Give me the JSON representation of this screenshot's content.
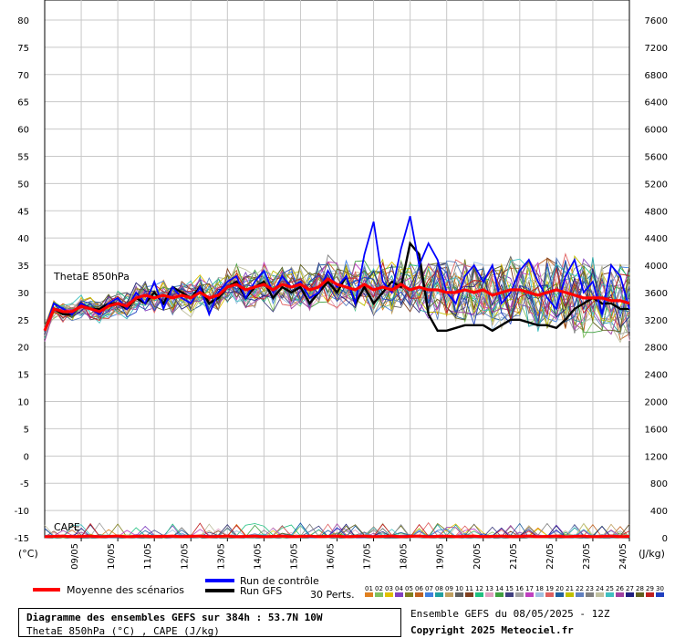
{
  "chart_data": {
    "type": "line",
    "title": "Diagramme des ensembles GEFS sur 384h : 53.7N 10W",
    "subtitle": "ThetaE 850hPa (°C) , CAPE (J/kg)",
    "left_axis": {
      "unit_label": "(°C)",
      "range": [
        -15,
        80
      ],
      "ticks": [
        80,
        75,
        70,
        65,
        60,
        55,
        50,
        45,
        40,
        35,
        30,
        25,
        20,
        15,
        10,
        5,
        0,
        -5,
        -10,
        -15
      ]
    },
    "right_axis": {
      "unit_label": "(J/kg)",
      "range": [
        0,
        7600
      ],
      "ticks": [
        7600,
        7200,
        6800,
        6400,
        6000,
        5600,
        5200,
        4800,
        4400,
        4000,
        3600,
        3200,
        2800,
        2400,
        2000,
        1600,
        1200,
        800,
        400,
        0
      ]
    },
    "x_ticks": [
      "09/05",
      "10/05",
      "11/05",
      "12/05",
      "13/05",
      "14/05",
      "15/05",
      "16/05",
      "17/05",
      "18/05",
      "19/05",
      "20/05",
      "21/05",
      "22/05",
      "23/05",
      "24/05"
    ],
    "x_range_hours": [
      0,
      384
    ],
    "annotations": [
      "ThetaE 850hPa",
      "CAPE"
    ],
    "series": [
      {
        "name": "Moyenne des scénarios",
        "color": "#ff0000",
        "x": [
          0,
          6,
          12,
          18,
          24,
          30,
          36,
          42,
          48,
          54,
          60,
          66,
          72,
          78,
          84,
          90,
          96,
          102,
          108,
          114,
          120,
          126,
          132,
          138,
          144,
          150,
          156,
          162,
          168,
          174,
          180,
          186,
          192,
          198,
          204,
          210,
          216,
          222,
          228,
          234,
          240,
          246,
          252,
          258,
          264,
          270,
          276,
          282,
          288,
          294,
          300,
          306,
          312,
          318,
          324,
          330,
          336,
          342,
          348,
          354,
          360,
          366,
          372,
          378,
          384
        ],
        "y": [
          23,
          27,
          26.5,
          26.5,
          27.5,
          27,
          26.5,
          27.5,
          28,
          27.5,
          29,
          29.5,
          29,
          29.5,
          29,
          29.5,
          29,
          30,
          29,
          29.5,
          31,
          31.5,
          30.5,
          31,
          31.5,
          30.5,
          31.5,
          31,
          31.5,
          30.5,
          31,
          32.5,
          31.5,
          31,
          30.5,
          31.5,
          30.5,
          31,
          30.5,
          31.5,
          30.5,
          31,
          30.5,
          30.5,
          30,
          30,
          30.5,
          30,
          30.5,
          29.5,
          30,
          30.5,
          30.5,
          30,
          29.5,
          30,
          30.5,
          30,
          29.5,
          29,
          29,
          29,
          28.5,
          28.5,
          28
        ]
      },
      {
        "name": "Run de contrôle",
        "color": "#0000ff",
        "x": [
          0,
          6,
          12,
          18,
          24,
          30,
          36,
          42,
          48,
          54,
          60,
          66,
          72,
          78,
          84,
          90,
          96,
          102,
          108,
          114,
          120,
          126,
          132,
          138,
          144,
          150,
          156,
          162,
          168,
          174,
          180,
          186,
          192,
          198,
          204,
          210,
          216,
          222,
          228,
          234,
          240,
          246,
          252,
          258,
          264,
          270,
          276,
          282,
          288,
          294,
          300,
          306,
          312,
          318,
          324,
          330,
          336,
          342,
          348,
          354,
          360,
          366,
          372,
          378,
          384
        ],
        "y": [
          23,
          28,
          27,
          26,
          28,
          27,
          26,
          28,
          29,
          27,
          30,
          28,
          32,
          27,
          31,
          29,
          28,
          31,
          26,
          30,
          32,
          33,
          29,
          32,
          34,
          30,
          33,
          31,
          32,
          29,
          30,
          34,
          31,
          33,
          28,
          37,
          43,
          32,
          30,
          38,
          44,
          35,
          39,
          36,
          30,
          28,
          33,
          35,
          32,
          35,
          28,
          30,
          34,
          36,
          32,
          29,
          27,
          33,
          36,
          30,
          32,
          26,
          35,
          33,
          27
        ]
      },
      {
        "name": "Run GFS",
        "color": "#000000",
        "x": [
          0,
          6,
          12,
          18,
          24,
          30,
          36,
          42,
          48,
          54,
          60,
          66,
          72,
          78,
          84,
          90,
          96,
          102,
          108,
          114,
          120,
          126,
          132,
          138,
          144,
          150,
          156,
          162,
          168,
          174,
          180,
          186,
          192,
          198,
          204,
          210,
          216,
          222,
          228,
          234,
          240,
          246,
          252,
          258,
          264,
          270,
          276,
          282,
          288,
          294,
          300,
          306,
          312,
          318,
          324,
          330,
          336,
          342,
          348,
          354,
          360,
          366,
          372,
          378,
          384
        ],
        "y": [
          23,
          27,
          26,
          26,
          28,
          27,
          27,
          28,
          28,
          27,
          29,
          28,
          30,
          28,
          31,
          30,
          29,
          31,
          28,
          29,
          31,
          32,
          29,
          31,
          32,
          29,
          31,
          30,
          31,
          28,
          30,
          32,
          30,
          33,
          28,
          31,
          28,
          30,
          32,
          31,
          39,
          37,
          26,
          23,
          23,
          23.5,
          24,
          24,
          24,
          23,
          24,
          25,
          25,
          24.5,
          24,
          24,
          23.5,
          25,
          27,
          28,
          29,
          28,
          28,
          27,
          27
        ]
      }
    ],
    "ensemble_count_label": "30 Perts.",
    "ensemble_member_labels": [
      "01",
      "02",
      "03",
      "04",
      "05",
      "06",
      "07",
      "08",
      "09",
      "10",
      "11",
      "12",
      "13",
      "14",
      "15",
      "16",
      "17",
      "18",
      "19",
      "20",
      "21",
      "22",
      "23",
      "24",
      "25",
      "26",
      "27",
      "28",
      "29",
      "30"
    ],
    "ensemble_colors": [
      "#e08020",
      "#80c060",
      "#e0c000",
      "#8040c0",
      "#808020",
      "#c06020",
      "#4080e0",
      "#20a0a0",
      "#c0a060",
      "#606060",
      "#804020",
      "#20c080",
      "#e0a0c0",
      "#40a040",
      "#404080",
      "#a0a0a0",
      "#c040c0",
      "#a0c0e0",
      "#e06060",
      "#2060a0",
      "#c0c000",
      "#6080c0",
      "#808080",
      "#c0c0a0",
      "#40c0c0",
      "#a040a0",
      "#202080",
      "#606020",
      "#c02020",
      "#2040c0"
    ]
  },
  "legend": {
    "mean_label": "Moyenne des scénarios",
    "control_label": "Run de contrôle",
    "gfs_label": "Run GFS"
  },
  "footer": {
    "title": "Diagramme des ensembles GEFS sur 384h : 53.7N 10W",
    "subtitle": "ThetaE 850hPa (°C) , CAPE (J/kg)",
    "run_info": "Ensemble GEFS du 08/05/2025 - 12Z",
    "copyright": "Copyright 2025 Meteociel.fr"
  }
}
